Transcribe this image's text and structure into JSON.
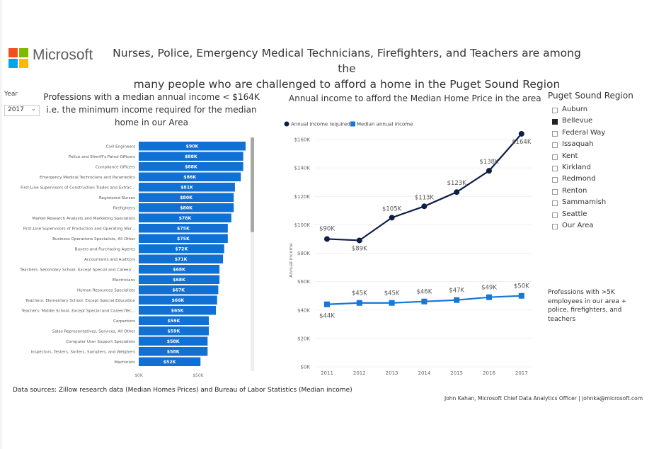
{
  "header": {
    "brand": "Microsoft",
    "title_line1": "Nurses, Police, Emergency Medical Technicians, Firefighters, and Teachers are among the",
    "title_line2": "many people who are challenged to afford a home in the Puget Sound Region"
  },
  "filters": {
    "year_label": "Year",
    "year_value": "2017"
  },
  "bar_panel": {
    "title_line1": "Professions with a median annual income < $164K",
    "title_line2": "i.e. the minimum income required for the median",
    "title_line3": "home in our Area"
  },
  "line_panel": {
    "title": "Annual income to afford the Median Home Price in the area"
  },
  "slicer": {
    "title": "Puget Sound Region",
    "items": [
      {
        "label": "Auburn",
        "selected": false
      },
      {
        "label": "Bellevue",
        "selected": true
      },
      {
        "label": "Federal Way",
        "selected": false
      },
      {
        "label": "Issaquah",
        "selected": false
      },
      {
        "label": "Kent",
        "selected": false
      },
      {
        "label": "Kirkland",
        "selected": false
      },
      {
        "label": "Redmond",
        "selected": false
      },
      {
        "label": "Renton",
        "selected": false
      },
      {
        "label": "Sammamish",
        "selected": false
      },
      {
        "label": "Seattle",
        "selected": false
      },
      {
        "label": "Our Area",
        "selected": false
      }
    ]
  },
  "note": "Professions with >5K employees in our area + police, firefighters, and teachers",
  "footer": {
    "source": "Data sources: Zillow research data (Median Homes Prices) and Bureau of Labor Statistics (Median income)",
    "credit": "John Kahan, Microsoft Chief Data Analytics Officer | johnka@microsoft.com"
  },
  "colors": {
    "bar": "#1170d3",
    "line_required": "#0f1e46",
    "line_median": "#1577d6"
  },
  "chart_data": [
    {
      "type": "bar",
      "orientation": "horizontal",
      "categories": [
        "Civil Engineers",
        "Police and Sheriff's Patrol Officers",
        "Compliance Officers",
        "Emergency Medical Technicians and Paramedics",
        "First-Line Supervisors of Construction Trades and Extrac...",
        "Registered Nurses",
        "Firefighters",
        "Market Research Analysts and Marketing Specialists",
        "First-Line Supervisors of Production and Operating Wor...",
        "Business Operations Specialists, All Other",
        "Buyers and Purchasing Agents",
        "Accountants and Auditors",
        "Teachers: Secondary School, Except Special and Career/...",
        "Electricians",
        "Human Resources Specialists",
        "Teachers: Elementary School, Except Special Education",
        "Teachers: Middle School, Except Special and Career/Tec...",
        "Carpenters",
        "Sales Representatives, Services, All Other",
        "Computer User Support Specialists",
        "Inspectors, Testers, Sorters, Samplers, and Weighers",
        "Machinists"
      ],
      "values": [
        90,
        88,
        88,
        86,
        81,
        80,
        80,
        78,
        75,
        75,
        72,
        71,
        68,
        68,
        67,
        66,
        65,
        59,
        59,
        58,
        58,
        52
      ],
      "labels": [
        "$90K",
        "$88K",
        "$88K",
        "$86K",
        "$81K",
        "$80K",
        "$80K",
        "$78K",
        "$75K",
        "$75K",
        "$72K",
        "$71K",
        "$68K",
        "$68K",
        "$67K",
        "$66K",
        "$65K",
        "$59K",
        "$59K",
        "$58K",
        "$58K",
        "$52K"
      ],
      "xticks": [
        "$0K",
        "$50K"
      ]
    },
    {
      "type": "line",
      "x": [
        2011,
        2012,
        2013,
        2014,
        2015,
        2016,
        2017
      ],
      "ylabel": "Annual income",
      "yticks": [
        "$0K",
        "$20K",
        "$40K",
        "$60K",
        "$80K",
        "$100K",
        "$120K",
        "$140K",
        "$160K"
      ],
      "ylim": [
        0,
        160
      ],
      "legend": "top-left",
      "series": [
        {
          "name": "Annual income required",
          "values": [
            90,
            89,
            105,
            113,
            123,
            138,
            164
          ],
          "labels": [
            "$90K",
            "$89K",
            "$105K",
            "$113K",
            "$123K",
            "$138K",
            "$164K"
          ]
        },
        {
          "name": "Median annual income",
          "values": [
            44,
            45,
            45,
            46,
            47,
            49,
            50
          ],
          "labels": [
            "$44K",
            "$45K",
            "$45K",
            "$46K",
            "$47K",
            "$49K",
            "$50K"
          ]
        }
      ]
    }
  ]
}
